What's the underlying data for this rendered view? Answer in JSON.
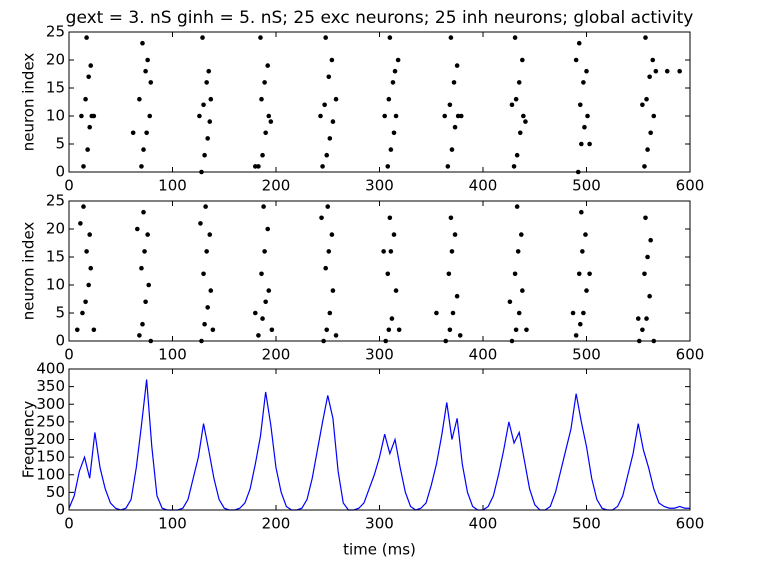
{
  "chart_data": [
    {
      "type": "scatter",
      "title": "gext = 3. nS ginh = 5. nS; 25 exc neurons; 25 inh neurons; global activity",
      "ylabel": "neuron index",
      "color": "#000000",
      "x": [
        14,
        18,
        20,
        22,
        16,
        19,
        21,
        17,
        24,
        12,
        70,
        72,
        75,
        78,
        68,
        74,
        76,
        71,
        79,
        62,
        128,
        131,
        134,
        136,
        130,
        133,
        135,
        129,
        137,
        126,
        183,
        187,
        190,
        193,
        186,
        189,
        192,
        185,
        195,
        180,
        245,
        249,
        252,
        255,
        247,
        251,
        254,
        248,
        258,
        243,
        308,
        311,
        314,
        316,
        309,
        313,
        315,
        310,
        318,
        305,
        366,
        370,
        373,
        376,
        368,
        372,
        375,
        369,
        379,
        363,
        430,
        433,
        436,
        439,
        432,
        435,
        438,
        431,
        441,
        428,
        492,
        495,
        498,
        501,
        494,
        497,
        500,
        493,
        503,
        490,
        556,
        559,
        562,
        565,
        558,
        561,
        564,
        557,
        567,
        554,
        578,
        590
      ],
      "y": [
        1,
        4,
        8,
        10,
        13,
        17,
        19,
        24,
        10,
        10,
        1,
        4,
        7,
        10,
        13,
        18,
        20,
        23,
        16,
        7,
        0,
        3,
        6,
        9,
        12,
        16,
        18,
        24,
        13,
        10,
        1,
        3,
        7,
        10,
        13,
        16,
        19,
        24,
        9,
        1,
        1,
        3,
        6,
        9,
        12,
        17,
        20,
        24,
        13,
        10,
        1,
        4,
        7,
        10,
        13,
        16,
        18,
        24,
        20,
        10,
        1,
        4,
        8,
        10,
        12,
        16,
        19,
        24,
        10,
        10,
        1,
        3,
        7,
        10,
        13,
        16,
        20,
        24,
        9,
        12,
        0,
        5,
        8,
        10,
        12,
        16,
        18,
        23,
        5,
        20,
        1,
        4,
        7,
        10,
        13,
        17,
        20,
        24,
        18,
        12,
        18,
        18
      ],
      "xlim": [
        0,
        600
      ],
      "ylim": [
        0,
        25
      ],
      "xticks": [
        0,
        100,
        200,
        300,
        400,
        500,
        600
      ],
      "yticks": [
        0,
        5,
        10,
        15,
        20,
        25
      ]
    },
    {
      "type": "scatter",
      "ylabel": "neuron index",
      "color": "#000000",
      "x": [
        8,
        13,
        16,
        19,
        21,
        17,
        20,
        14,
        24,
        11,
        68,
        71,
        74,
        77,
        70,
        73,
        76,
        72,
        79,
        66,
        128,
        131,
        134,
        137,
        130,
        133,
        136,
        132,
        139,
        127,
        183,
        187,
        190,
        193,
        186,
        189,
        192,
        188,
        196,
        180,
        246,
        249,
        252,
        255,
        248,
        251,
        254,
        250,
        258,
        244,
        306,
        309,
        312,
        316,
        308,
        311,
        314,
        310,
        319,
        304,
        364,
        368,
        371,
        375,
        367,
        370,
        373,
        369,
        378,
        355,
        428,
        432,
        435,
        438,
        431,
        434,
        437,
        433,
        442,
        426,
        490,
        494,
        497,
        500,
        493,
        496,
        499,
        495,
        503,
        487,
        551,
        554,
        558,
        561,
        556,
        559,
        562,
        557,
        565,
        550
      ],
      "y": [
        2,
        5,
        7,
        10,
        13,
        16,
        19,
        24,
        2,
        21,
        1,
        3,
        7,
        10,
        13,
        16,
        19,
        23,
        0,
        20,
        0,
        3,
        6,
        9,
        12,
        16,
        19,
        24,
        2,
        21,
        1,
        4,
        7,
        9,
        12,
        16,
        20,
        24,
        2,
        5,
        0,
        2,
        5,
        9,
        13,
        16,
        19,
        24,
        1,
        22,
        0,
        2,
        4,
        9,
        12,
        16,
        19,
        22,
        2,
        16,
        0,
        2,
        5,
        8,
        12,
        16,
        19,
        22,
        1,
        5,
        0,
        2,
        5,
        9,
        12,
        16,
        19,
        24,
        2,
        7,
        1,
        3,
        5,
        9,
        12,
        16,
        19,
        23,
        12,
        5,
        0,
        2,
        4,
        8,
        12,
        15,
        18,
        22,
        0,
        4
      ],
      "xlim": [
        0,
        600
      ],
      "ylim": [
        0,
        25
      ],
      "xticks": [
        0,
        100,
        200,
        300,
        400,
        500,
        600
      ],
      "yticks": [
        0,
        5,
        10,
        15,
        20,
        25
      ]
    },
    {
      "type": "line",
      "ylabel": "Frequency",
      "xlabel": "time (ms)",
      "color": "#0000ff",
      "x": [
        0,
        5,
        10,
        15,
        20,
        25,
        30,
        35,
        40,
        45,
        50,
        55,
        60,
        65,
        70,
        75,
        80,
        85,
        90,
        95,
        100,
        105,
        110,
        115,
        120,
        125,
        130,
        135,
        140,
        145,
        150,
        155,
        160,
        165,
        170,
        175,
        180,
        185,
        190,
        195,
        200,
        205,
        210,
        215,
        220,
        225,
        230,
        235,
        240,
        245,
        250,
        255,
        260,
        265,
        270,
        275,
        280,
        285,
        290,
        295,
        300,
        305,
        310,
        315,
        320,
        325,
        330,
        335,
        340,
        345,
        350,
        355,
        360,
        365,
        370,
        375,
        380,
        385,
        390,
        395,
        400,
        405,
        410,
        415,
        420,
        425,
        430,
        435,
        440,
        445,
        450,
        455,
        460,
        465,
        470,
        475,
        480,
        485,
        490,
        495,
        500,
        505,
        510,
        515,
        520,
        525,
        530,
        535,
        540,
        545,
        550,
        555,
        560,
        565,
        570,
        575,
        580,
        585,
        590,
        595,
        600
      ],
      "values": [
        5,
        40,
        110,
        150,
        90,
        220,
        120,
        60,
        20,
        5,
        0,
        5,
        30,
        120,
        240,
        370,
        180,
        40,
        5,
        0,
        0,
        0,
        5,
        30,
        90,
        150,
        245,
        170,
        90,
        30,
        5,
        0,
        0,
        5,
        20,
        60,
        130,
        210,
        335,
        240,
        120,
        50,
        10,
        0,
        0,
        5,
        30,
        90,
        170,
        250,
        325,
        260,
        110,
        20,
        0,
        0,
        5,
        20,
        60,
        100,
        150,
        215,
        160,
        200,
        120,
        50,
        10,
        0,
        5,
        20,
        70,
        130,
        210,
        305,
        200,
        260,
        130,
        50,
        10,
        0,
        0,
        10,
        40,
        100,
        170,
        250,
        190,
        220,
        140,
        60,
        15,
        0,
        0,
        10,
        50,
        110,
        170,
        230,
        330,
        250,
        180,
        90,
        30,
        5,
        0,
        0,
        10,
        40,
        100,
        160,
        245,
        170,
        120,
        60,
        20,
        10,
        5,
        5,
        10,
        5,
        5
      ],
      "xlim": [
        0,
        600
      ],
      "ylim": [
        0,
        400
      ],
      "xticks": [
        0,
        100,
        200,
        300,
        400,
        500,
        600
      ],
      "yticks": [
        0,
        50,
        100,
        150,
        200,
        250,
        300,
        350,
        400
      ]
    }
  ]
}
